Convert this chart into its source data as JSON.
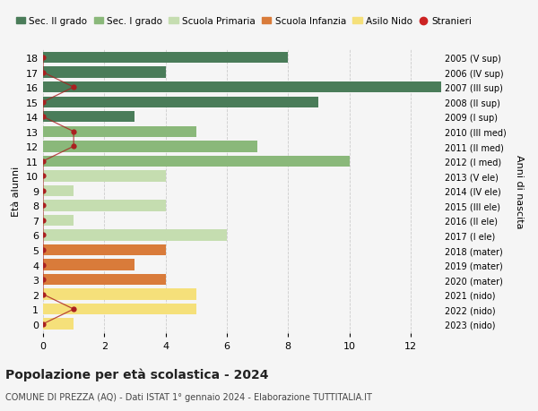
{
  "ages": [
    18,
    17,
    16,
    15,
    14,
    13,
    12,
    11,
    10,
    9,
    8,
    7,
    6,
    5,
    4,
    3,
    2,
    1,
    0
  ],
  "years": [
    "2005 (V sup)",
    "2006 (IV sup)",
    "2007 (III sup)",
    "2008 (II sup)",
    "2009 (I sup)",
    "2010 (III med)",
    "2011 (II med)",
    "2012 (I med)",
    "2013 (V ele)",
    "2014 (IV ele)",
    "2015 (III ele)",
    "2016 (II ele)",
    "2017 (I ele)",
    "2018 (mater)",
    "2019 (mater)",
    "2020 (mater)",
    "2021 (nido)",
    "2022 (nido)",
    "2023 (nido)"
  ],
  "values": [
    8,
    4,
    13,
    9,
    3,
    5,
    7,
    10,
    4,
    1,
    4,
    1,
    6,
    4,
    3,
    4,
    5,
    5,
    1
  ],
  "bar_colors": [
    "#4a7c59",
    "#4a7c59",
    "#4a7c59",
    "#4a7c59",
    "#4a7c59",
    "#8ab87a",
    "#8ab87a",
    "#8ab87a",
    "#c5ddb0",
    "#c5ddb0",
    "#c5ddb0",
    "#c5ddb0",
    "#c5ddb0",
    "#d97b3a",
    "#d97b3a",
    "#d97b3a",
    "#f5e07a",
    "#f5e07a",
    "#f5e07a"
  ],
  "stranieri_values": [
    0,
    0,
    1,
    0,
    0,
    1,
    1,
    0,
    0,
    0,
    0,
    0,
    0,
    0,
    0,
    0,
    0,
    1,
    0
  ],
  "stranieri_color": "#aa2020",
  "stranieri_line_color": "#aa2020",
  "legend_labels": [
    "Sec. II grado",
    "Sec. I grado",
    "Scuola Primaria",
    "Scuola Infanzia",
    "Asilo Nido",
    "Stranieri"
  ],
  "legend_colors": [
    "#4a7c59",
    "#8ab87a",
    "#c5ddb0",
    "#d97b3a",
    "#f5e07a",
    "#cc2222"
  ],
  "title": "Popolazione per età scolastica - 2024",
  "subtitle": "COMUNE DI PREZZA (AQ) - Dati ISTAT 1° gennaio 2024 - Elaborazione TUTTITALIA.IT",
  "ylabel_left": "Età alunni",
  "ylabel_right": "Anni di nascita",
  "xlim": [
    0,
    13
  ],
  "xticks": [
    0,
    2,
    4,
    6,
    8,
    10,
    12
  ],
  "background_color": "#f5f5f5",
  "grid_color": "#cccccc"
}
